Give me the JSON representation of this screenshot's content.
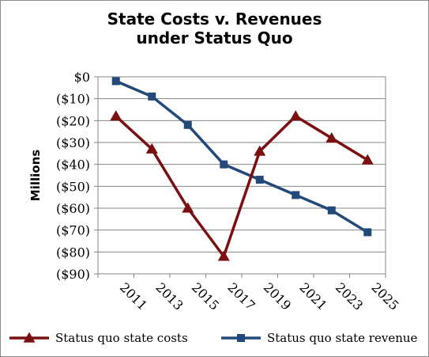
{
  "chart_data": {
    "type": "line",
    "title_lines": [
      "State Costs v. Revenues",
      "under Status Quo"
    ],
    "ylabel": "Millions",
    "xlabel": "",
    "categories": [
      "2011",
      "2013",
      "2015",
      "2017",
      "2019",
      "2021",
      "2023",
      "2025"
    ],
    "y_tick_labels": [
      "$0",
      "($10)",
      "($20)",
      "($30)",
      "($40)",
      "($50)",
      "($60)",
      "($70)",
      "($80)",
      "($90)"
    ],
    "ylim": [
      -90,
      0
    ],
    "x_label_rotation_deg": 45,
    "grid": "horizontal",
    "legend_position": "bottom",
    "series": [
      {
        "name": "Status quo state costs",
        "color": "#7b1010",
        "marker": "triangle",
        "x": [
          2011,
          2013,
          2015,
          2017,
          2019,
          2021,
          2023,
          2025
        ],
        "values": [
          -18,
          -33,
          -60,
          -82,
          -34,
          -18,
          -28,
          -38
        ]
      },
      {
        "name": "Status quo state revenue",
        "color": "#23497a",
        "marker": "square",
        "x": [
          2011,
          2013,
          2015,
          2017,
          2019,
          2021,
          2023,
          2025
        ],
        "values": [
          -2,
          -9,
          -22,
          -40,
          -47,
          -54,
          -61,
          -71
        ]
      }
    ]
  }
}
